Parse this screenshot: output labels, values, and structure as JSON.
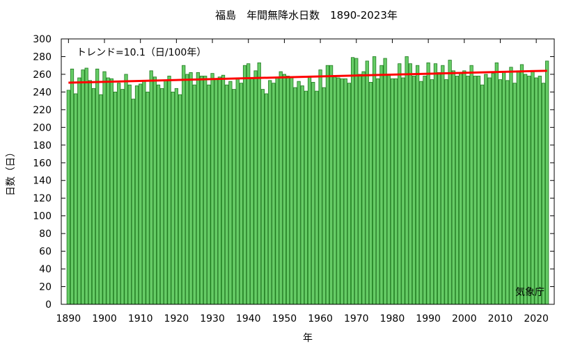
{
  "chart_data": {
    "type": "bar",
    "title": "福島　年間無降水日数　1890-2023年",
    "xlabel": "年",
    "ylabel": "日数（日）",
    "trend_label": "トレンド=10.1（日/100年）",
    "credit": "気象庁",
    "xlim": [
      1888,
      2025
    ],
    "ylim": [
      0,
      300
    ],
    "x_ticks": [
      1890,
      1900,
      1910,
      1920,
      1930,
      1940,
      1950,
      1960,
      1970,
      1980,
      1990,
      2000,
      2010,
      2020
    ],
    "y_ticks": [
      0,
      20,
      40,
      60,
      80,
      100,
      120,
      140,
      160,
      180,
      200,
      220,
      240,
      260,
      280,
      300
    ],
    "bar_color": "#66cc66",
    "bar_edge_color": "#1f7a1f",
    "trend_color": "#ff0000",
    "trend": {
      "x": [
        1890,
        2023
      ],
      "y": [
        250.5,
        264.0
      ]
    },
    "years": [
      1890,
      1891,
      1892,
      1893,
      1894,
      1895,
      1896,
      1897,
      1898,
      1899,
      1900,
      1901,
      1902,
      1903,
      1904,
      1905,
      1906,
      1907,
      1908,
      1909,
      1910,
      1911,
      1912,
      1913,
      1914,
      1915,
      1916,
      1917,
      1918,
      1919,
      1920,
      1921,
      1922,
      1923,
      1924,
      1925,
      1926,
      1927,
      1928,
      1929,
      1930,
      1931,
      1932,
      1933,
      1934,
      1935,
      1936,
      1937,
      1938,
      1939,
      1940,
      1941,
      1942,
      1943,
      1944,
      1945,
      1946,
      1947,
      1948,
      1949,
      1950,
      1951,
      1952,
      1953,
      1954,
      1955,
      1956,
      1957,
      1958,
      1959,
      1960,
      1961,
      1962,
      1963,
      1964,
      1965,
      1966,
      1967,
      1968,
      1969,
      1970,
      1971,
      1972,
      1973,
      1974,
      1975,
      1976,
      1977,
      1978,
      1979,
      1980,
      1981,
      1982,
      1983,
      1984,
      1985,
      1986,
      1987,
      1988,
      1989,
      1990,
      1991,
      1992,
      1993,
      1994,
      1995,
      1996,
      1997,
      1998,
      1999,
      2000,
      2001,
      2002,
      2003,
      2004,
      2005,
      2006,
      2007,
      2008,
      2009,
      2010,
      2011,
      2012,
      2013,
      2014,
      2015,
      2016,
      2017,
      2018,
      2019,
      2020,
      2021,
      2022,
      2023
    ],
    "values": [
      242,
      266,
      238,
      256,
      265,
      267,
      253,
      244,
      266,
      237,
      263,
      256,
      255,
      240,
      250,
      243,
      260,
      248,
      232,
      247,
      249,
      252,
      240,
      264,
      257,
      248,
      244,
      253,
      258,
      240,
      244,
      237,
      270,
      260,
      262,
      248,
      262,
      258,
      258,
      248,
      261,
      255,
      257,
      259,
      248,
      252,
      243,
      256,
      250,
      270,
      272,
      256,
      264,
      273,
      243,
      238,
      253,
      250,
      256,
      263,
      260,
      258,
      257,
      245,
      252,
      247,
      241,
      258,
      251,
      241,
      265,
      245,
      270,
      270,
      257,
      256,
      255,
      255,
      250,
      279,
      278,
      260,
      263,
      275,
      251,
      280,
      255,
      270,
      278,
      260,
      255,
      255,
      272,
      256,
      280,
      272,
      258,
      270,
      252,
      258,
      273,
      254,
      272,
      262,
      270,
      254,
      276,
      264,
      258,
      262,
      264,
      258,
      270,
      258,
      258,
      248,
      260,
      256,
      261,
      273,
      254,
      263,
      253,
      268,
      250,
      264,
      271,
      260,
      258,
      264,
      256,
      258,
      250,
      275
    ]
  }
}
